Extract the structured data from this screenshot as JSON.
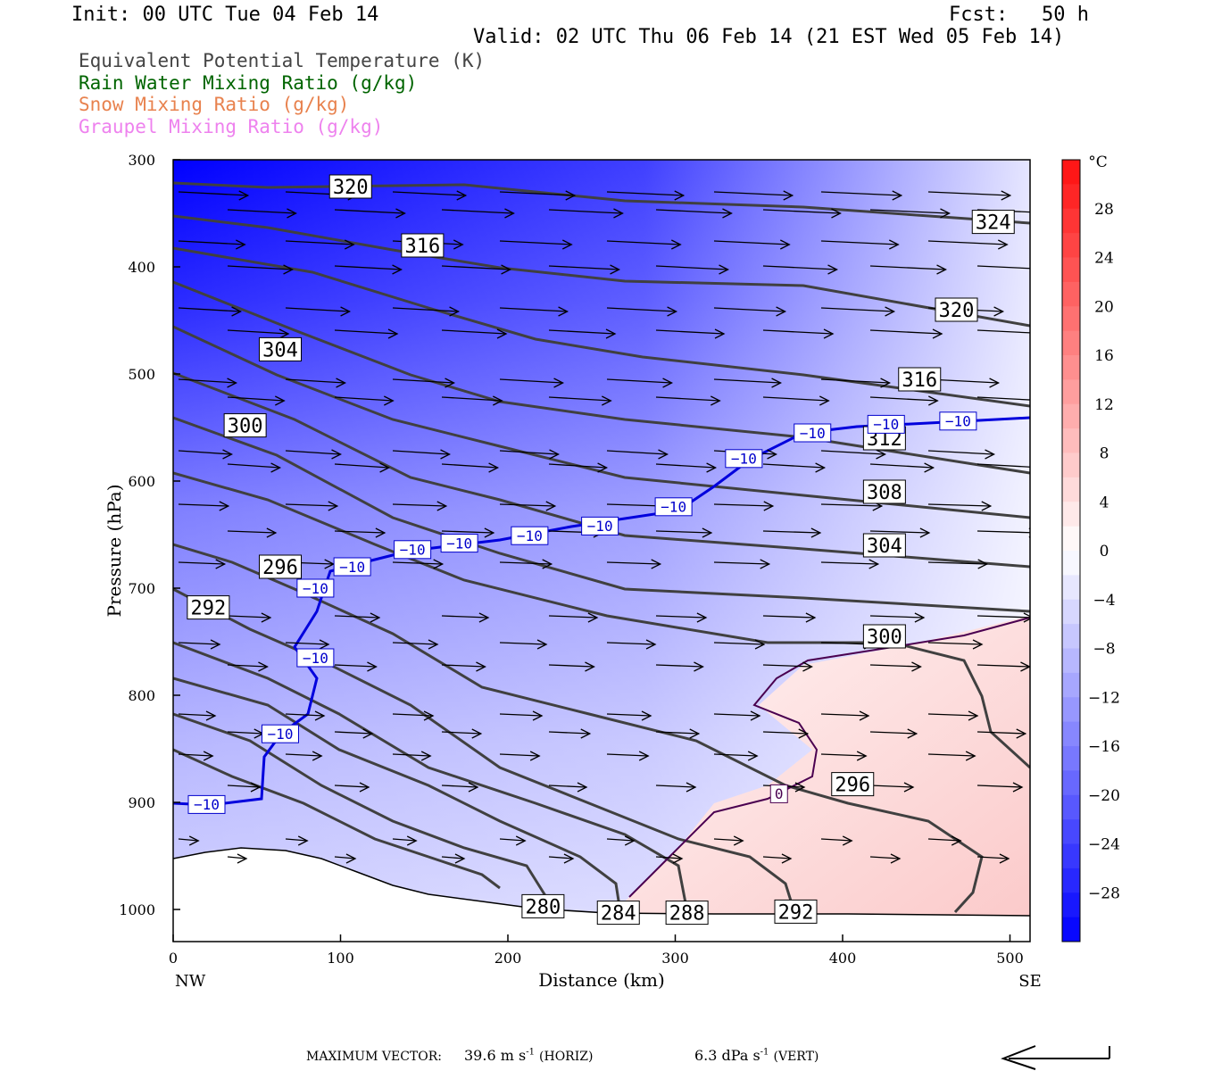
{
  "header": {
    "init": "Init: 00 UTC Tue 04 Feb 14",
    "fcst_label": "Fcst:",
    "fcst_value": "50 h",
    "valid": "Valid: 02 UTC Thu 06 Feb 14 (21 EST Wed 05 Feb 14)"
  },
  "legend": [
    {
      "text": "Equivalent Potential Temperature (K)",
      "color": "#444444"
    },
    {
      "text": "Rain Water Mixing Ratio (g/kg)",
      "color": "#006400"
    },
    {
      "text": "Snow Mixing Ratio (g/kg)",
      "color": "#e8824e"
    },
    {
      "text": "Graupel Mixing Ratio (g/kg)",
      "color": "#ee82ee"
    }
  ],
  "footer": {
    "max_vector_label": "MAXIMUM VECTOR:",
    "horiz_value": "39.6 m s",
    "horiz_unit": "-1",
    "horiz_tag": "(HORIZ)",
    "vert_value": "6.3 dPa s",
    "vert_unit": "-1",
    "vert_tag": "(VERT)"
  },
  "chart_data": {
    "type": "cross-section",
    "xlabel": "Distance (km)",
    "ylabel": "Pressure (hPa)",
    "xlim": [
      0,
      512
    ],
    "ylim": [
      1030,
      300
    ],
    "x_ticks": [
      0,
      100,
      200,
      300,
      400,
      500
    ],
    "y_ticks": [
      300,
      400,
      500,
      600,
      700,
      800,
      900,
      1000
    ],
    "x_end_labels": {
      "left": "NW",
      "right": "SE"
    },
    "colorbar": {
      "unit": "°C",
      "tick_labels": [
        "28",
        "24",
        "20",
        "16",
        "12",
        "8",
        "4",
        "0",
        "−4",
        "−8",
        "−12",
        "−16",
        "−20",
        "−24",
        "−28"
      ],
      "range": [
        -32,
        32
      ]
    },
    "theta_e_labels": [
      {
        "text": "320",
        "x": 106,
        "p": 325
      },
      {
        "text": "324",
        "x": 490,
        "p": 358
      },
      {
        "text": "316",
        "x": 149,
        "p": 380
      },
      {
        "text": "320",
        "x": 468,
        "p": 440
      },
      {
        "text": "304",
        "x": 64,
        "p": 477
      },
      {
        "text": "316",
        "x": 446,
        "p": 505
      },
      {
        "text": "300",
        "x": 43,
        "p": 548
      },
      {
        "text": "312",
        "x": 425,
        "p": 560
      },
      {
        "text": "308",
        "x": 425,
        "p": 610
      },
      {
        "text": "304",
        "x": 425,
        "p": 660
      },
      {
        "text": "296",
        "x": 64,
        "p": 680
      },
      {
        "text": "292",
        "x": 21,
        "p": 718
      },
      {
        "text": "300",
        "x": 425,
        "p": 745
      },
      {
        "text": "296",
        "x": 406,
        "p": 883
      },
      {
        "text": "280",
        "x": 221,
        "p": 997
      },
      {
        "text": "284",
        "x": 266,
        "p": 1003
      },
      {
        "text": "288",
        "x": 307,
        "p": 1003
      },
      {
        "text": "292",
        "x": 372,
        "p": 1002
      }
    ],
    "temp_labels": [
      {
        "text": "−10",
        "x": 20,
        "p": 902
      },
      {
        "text": "−10",
        "x": 64,
        "p": 836
      },
      {
        "text": "−10",
        "x": 85,
        "p": 765
      },
      {
        "text": "−10",
        "x": 85,
        "p": 700
      },
      {
        "text": "−10",
        "x": 107,
        "p": 680
      },
      {
        "text": "−10",
        "x": 143,
        "p": 664
      },
      {
        "text": "−10",
        "x": 171,
        "p": 658
      },
      {
        "text": "−10",
        "x": 213,
        "p": 651
      },
      {
        "text": "−10",
        "x": 255,
        "p": 642
      },
      {
        "text": "−10",
        "x": 299,
        "p": 624
      },
      {
        "text": "−10",
        "x": 341,
        "p": 579
      },
      {
        "text": "−10",
        "x": 382,
        "p": 555
      },
      {
        "text": "−10",
        "x": 426,
        "p": 547
      },
      {
        "text": "−10",
        "x": 469,
        "p": 544
      },
      {
        "text": "0",
        "x": 362,
        "p": 892
      }
    ]
  }
}
